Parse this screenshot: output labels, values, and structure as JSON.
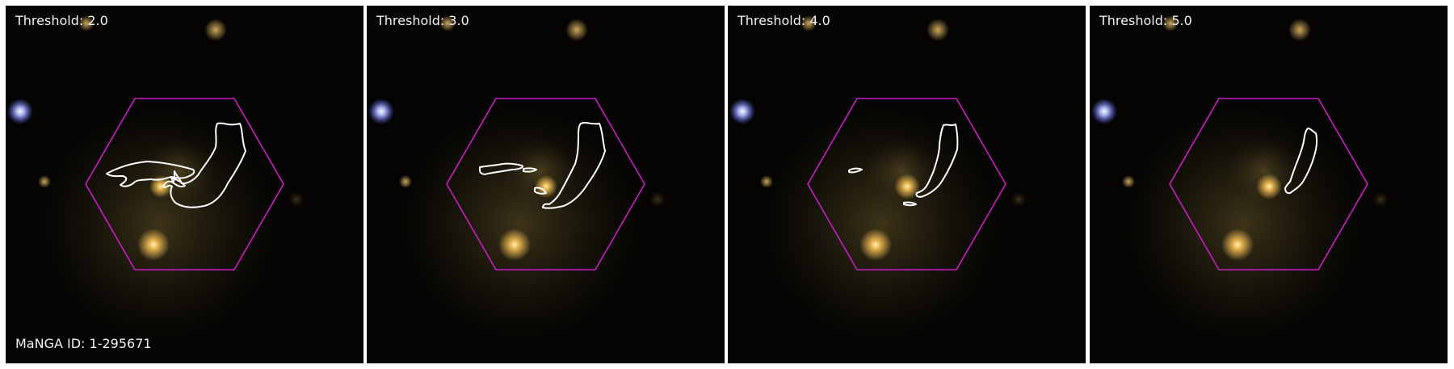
{
  "figure": {
    "galaxy_id_label": "MaNGA ID: 1-295671",
    "panels": [
      {
        "threshold_label": "Threshold: 2.0",
        "threshold": 2.0
      },
      {
        "threshold_label": "Threshold: 3.0",
        "threshold": 3.0
      },
      {
        "threshold_label": "Threshold: 4.0",
        "threshold": 4.0
      },
      {
        "threshold_label": "Threshold: 5.0",
        "threshold": 5.0
      }
    ]
  },
  "colors": {
    "background": "#050403",
    "hexagon": "#c81ec8",
    "contour": "#ffffff",
    "galaxy_core": "#ffc85a",
    "blue_star": "#aab4ff",
    "label_text": "#f2f2f2"
  }
}
